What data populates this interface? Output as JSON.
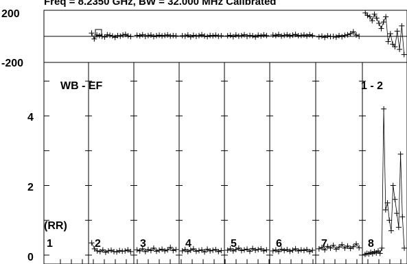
{
  "chart_data": [
    {
      "type": "scatter",
      "panel": "phase",
      "title": "Freq = 8.2350 GHz, BW = 32.000 MHz Calibrated",
      "xlabel": "",
      "ylabel": "",
      "yticks": [
        "200",
        "-200"
      ],
      "ylim": [
        -200,
        200
      ],
      "xlim": [
        0,
        8
      ],
      "reference_line": 0,
      "grid": "vertical lines at segment boundaries",
      "segments": [
        {
          "id": "2",
          "start": 1.0,
          "end": 2.0,
          "mean": 8,
          "spread": 12,
          "values": [
            25,
            -20,
            10,
            5,
            0,
            -5,
            12,
            8,
            3,
            -8,
            6,
            2,
            10,
            15,
            4,
            -2
          ]
        },
        {
          "id": "3",
          "start": 2.0,
          "end": 3.0,
          "mean": 6,
          "spread": 10,
          "values": [
            8,
            4,
            12,
            0,
            6,
            10,
            -2,
            5,
            9,
            3,
            7,
            11,
            2,
            6,
            4
          ]
        },
        {
          "id": "4",
          "start": 3.0,
          "end": 4.0,
          "mean": 4,
          "spread": 12,
          "values": [
            5,
            2,
            10,
            -4,
            8,
            0,
            6,
            12,
            3,
            -2,
            7,
            4,
            9,
            1,
            5
          ]
        },
        {
          "id": "5",
          "start": 4.0,
          "end": 5.0,
          "mean": 5,
          "spread": 12,
          "values": [
            4,
            8,
            -3,
            10,
            2,
            6,
            12,
            0,
            7,
            5,
            -5,
            9,
            3,
            11,
            6
          ]
        },
        {
          "id": "6",
          "start": 5.0,
          "end": 6.0,
          "mean": 8,
          "spread": 12,
          "values": [
            10,
            6,
            14,
            2,
            8,
            12,
            4,
            9,
            15,
            5,
            7,
            11,
            3,
            13,
            6
          ]
        },
        {
          "id": "7",
          "start": 6.0,
          "end": 7.0,
          "mean": -2,
          "spread": 12,
          "values": [
            -4,
            2,
            -8,
            4,
            -2,
            0,
            -6,
            6,
            -3,
            8,
            12,
            20,
            35,
            10,
            0
          ]
        },
        {
          "id": "8",
          "start": 7.0,
          "end": 8.0,
          "mean": 0,
          "spread": 150,
          "values": [
            180,
            160,
            150,
            120,
            170,
            140,
            100,
            60,
            110,
            150,
            -40,
            20,
            -60,
            -80,
            40,
            -100,
            80,
            -140
          ]
        }
      ]
    },
    {
      "type": "scatter",
      "panel": "amplitude",
      "baseline_label": "WB - EF",
      "polarization_label": "(RR)",
      "corner_label": "1 - 2",
      "yticks": [
        "4",
        "2",
        "0"
      ],
      "ylim": [
        0,
        5
      ],
      "xlim": [
        0,
        8
      ],
      "grid": "vertical lines at segment boundaries",
      "segment_labels": [
        "1",
        "2",
        "3",
        "4",
        "5",
        "6",
        "7",
        "8"
      ],
      "segments": [
        {
          "id": "2",
          "start": 1.0,
          "end": 2.0,
          "mean": 0.12,
          "spread": 0.05,
          "values": [
            0.35,
            0.18,
            0.12,
            0.1,
            0.15,
            0.08,
            0.12,
            0.14,
            0.1,
            0.09,
            0.13,
            0.11,
            0.12,
            0.15,
            0.1
          ]
        },
        {
          "id": "3",
          "start": 2.0,
          "end": 3.0,
          "mean": 0.14,
          "spread": 0.06,
          "values": [
            0.15,
            0.12,
            0.18,
            0.1,
            0.16,
            0.13,
            0.2,
            0.11,
            0.14,
            0.17,
            0.12,
            0.15,
            0.22,
            0.13,
            0.16
          ]
        },
        {
          "id": "4",
          "start": 3.0,
          "end": 4.0,
          "mean": 0.13,
          "spread": 0.06,
          "values": [
            0.12,
            0.16,
            0.1,
            0.14,
            0.18,
            0.11,
            0.13,
            0.15,
            0.09,
            0.17,
            0.12,
            0.14,
            0.16,
            0.1,
            0.13
          ]
        },
        {
          "id": "5",
          "start": 4.0,
          "end": 5.0,
          "mean": 0.15,
          "spread": 0.06,
          "values": [
            0.14,
            0.18,
            0.12,
            0.16,
            0.2,
            0.13,
            0.15,
            0.17,
            0.11,
            0.19,
            0.14,
            0.16,
            0.18,
            0.12,
            0.15
          ]
        },
        {
          "id": "6",
          "start": 5.0,
          "end": 6.0,
          "mean": 0.13,
          "spread": 0.06,
          "values": [
            0.12,
            0.15,
            0.1,
            0.17,
            0.13,
            0.16,
            0.11,
            0.14,
            0.18,
            0.12,
            0.15,
            0.13,
            0.16,
            0.1,
            0.14
          ]
        },
        {
          "id": "7",
          "start": 6.0,
          "end": 7.0,
          "mean": 0.2,
          "spread": 0.08,
          "values": [
            0.18,
            0.22,
            0.15,
            0.25,
            0.2,
            0.28,
            0.17,
            0.23,
            0.3,
            0.2,
            0.26,
            0.19,
            0.24,
            0.32,
            0.21
          ]
        },
        {
          "id": "8",
          "start": 7.0,
          "end": 8.0,
          "mean": 1.5,
          "spread": 1.5,
          "values": [
            0.02,
            0.05,
            0.03,
            0.08,
            0.04,
            0.1,
            0.06,
            0.12,
            0.05,
            0.2,
            4.2,
            1.3,
            1.5,
            1.0,
            0.7,
            2.0,
            1.6,
            1.2,
            0.8,
            2.9,
            1.1,
            0.2
          ]
        }
      ]
    }
  ]
}
